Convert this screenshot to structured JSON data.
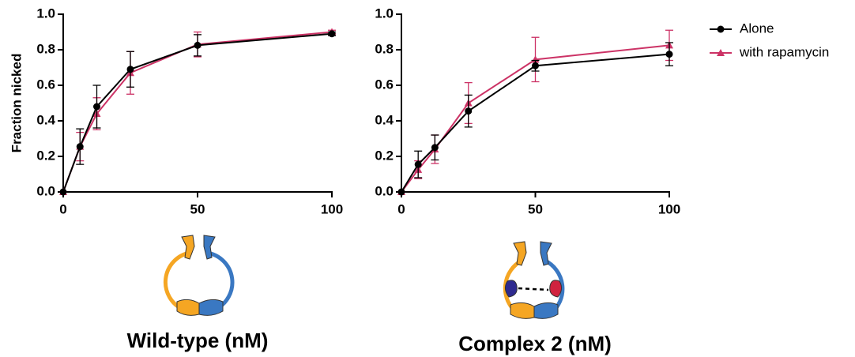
{
  "chart_data": [
    {
      "type": "line",
      "title": "Wild-type (nM)",
      "ylabel": "Fraction nicked",
      "x": [
        0,
        6.25,
        12.5,
        25,
        50,
        100
      ],
      "series": [
        {
          "color": "#000000",
          "marker": "circle",
          "values": [
            0,
            0.255,
            0.48,
            0.69,
            0.825,
            0.89
          ],
          "errors": [
            0,
            0.1,
            0.12,
            0.1,
            0.06,
            0.01
          ]
        },
        {
          "color": "#cc3366",
          "marker": "triangle",
          "values": [
            0,
            0.255,
            0.44,
            0.67,
            0.83,
            0.9
          ],
          "errors": [
            0,
            0.08,
            0.09,
            0.12,
            0.07,
            0.01
          ]
        }
      ],
      "xlim": [
        0,
        100
      ],
      "xticks": [
        0,
        50,
        100
      ],
      "ylim": [
        0,
        1
      ],
      "yticks": [
        {
          "value": 0,
          "label": "0.0"
        },
        0.2,
        0.4,
        0.6,
        0.8,
        {
          "value": 1,
          "label": "1.0"
        }
      ]
    },
    {
      "type": "line",
      "title": "Complex 2 (nM)",
      "x": [
        0,
        6.25,
        12.5,
        25,
        50,
        100
      ],
      "series": [
        {
          "name": "Alone",
          "color": "#000000",
          "marker": "circle",
          "values": [
            0,
            0.155,
            0.25,
            0.455,
            0.71,
            0.775
          ],
          "errors": [
            0,
            0.075,
            0.07,
            0.09,
            0.03,
            0.065
          ]
        },
        {
          "name": "with rapamycin",
          "color": "#cc3366",
          "marker": "triangle",
          "values": [
            0,
            0.125,
            0.24,
            0.5,
            0.745,
            0.825
          ],
          "errors": [
            0,
            0.05,
            0.08,
            0.115,
            0.125,
            0.085
          ]
        }
      ],
      "xlim": [
        0,
        100
      ],
      "xticks": [
        0,
        50,
        100
      ],
      "ylim": [
        0,
        1
      ],
      "yticks": [
        {
          "value": 0,
          "label": "0.0"
        },
        0.2,
        0.4,
        0.6,
        0.8,
        {
          "value": 1,
          "label": "1.0"
        }
      ],
      "legend": "right"
    }
  ]
}
